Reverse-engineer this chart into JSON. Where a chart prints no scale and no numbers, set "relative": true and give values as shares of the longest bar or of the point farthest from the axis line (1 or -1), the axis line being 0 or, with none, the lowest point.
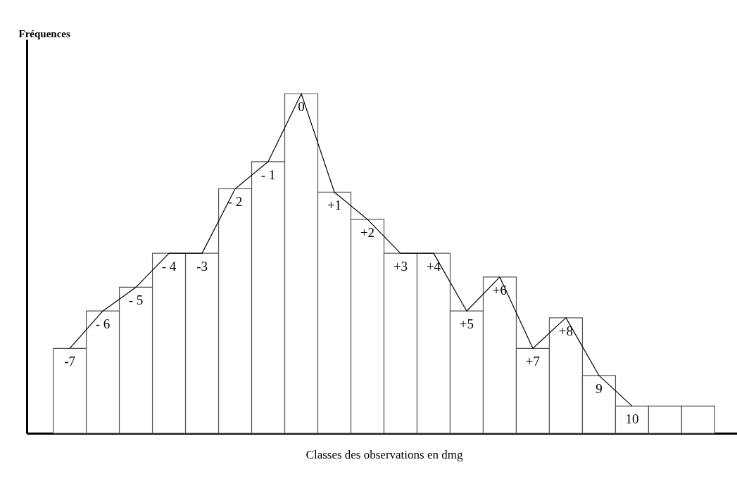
{
  "chart_data": {
    "type": "bar",
    "relative": true,
    "xlabel": "Classes  des observations en dmg",
    "annotations": [
      "Fréquences"
    ],
    "categories": [
      "-7",
      "- 6",
      "- 5",
      "- 4",
      "-3",
      "- 2",
      "- 1",
      "0",
      "+1",
      "+2",
      "+3",
      "+4",
      "+5",
      "+6",
      "+7",
      "+8",
      "9",
      "10",
      null,
      null
    ],
    "series": [
      {
        "color": "#ffffff",
        "values": [
          0.25,
          0.36,
          0.43,
          0.53,
          0.53,
          0.72,
          0.8,
          1,
          0.71,
          0.63,
          0.53,
          0.53,
          0.36,
          0.46,
          0.25,
          0.34,
          0.17,
          0.08,
          0.08,
          0.08
        ]
      },
      {
        "type": "line",
        "color": "#000000",
        "values": [
          0.25,
          0.36,
          0.43,
          0.53,
          0.53,
          0.72,
          0.8,
          1,
          0.71,
          0.63,
          0.53,
          0.53,
          0.36,
          0.46,
          0.25,
          0.34,
          0.17,
          0.08,
          null,
          null
        ]
      }
    ],
    "marker": "none",
    "line_style": "solid"
  }
}
